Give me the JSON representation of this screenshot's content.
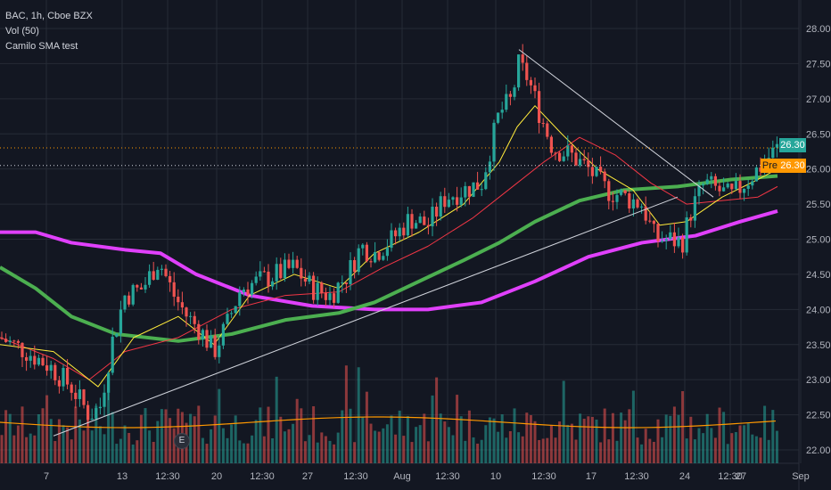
{
  "chart_data": {
    "type": "candlestick",
    "symbol": "BAC",
    "interval": "1h",
    "exchange": "Cboe BZX",
    "title": "BAC, 1h, Cboe BZX",
    "indicators": [
      "Vol (50)",
      "Camilo SMA test"
    ],
    "y_ticks": [
      "28.00",
      "27.50",
      "27.00",
      "26.50",
      "26.00",
      "25.50",
      "25.00",
      "24.50",
      "24.00",
      "23.50",
      "23.00",
      "22.50",
      "22.00"
    ],
    "ylim": [
      21.9,
      28.2
    ],
    "x_ticks": [
      "7",
      "13",
      "12:30",
      "20",
      "12:30",
      "27",
      "12:30",
      "Aug",
      "12:30",
      "10",
      "12:30",
      "17",
      "12:30",
      "24",
      "12:30",
      "27",
      "Sep"
    ],
    "last_price": "26.30",
    "pre_market_label": "Pre",
    "pre_market_price": "26.30",
    "earnings_marker": "E",
    "grid": true,
    "price_scale_side": "right",
    "colors": {
      "background": "#131722",
      "grid": "#262b36",
      "up": "#26a69a",
      "down": "#ef5350",
      "sma_fast": "#ffeb3b",
      "sma_mid": "#f23645",
      "sma_green": "#4caf50",
      "sma_magenta": "#e040fb",
      "volume_ma": "#ff9800",
      "trendline": "#d1d4dc",
      "last_price_box": "#26a69a",
      "pre_box": "#ff9800"
    }
  }
}
